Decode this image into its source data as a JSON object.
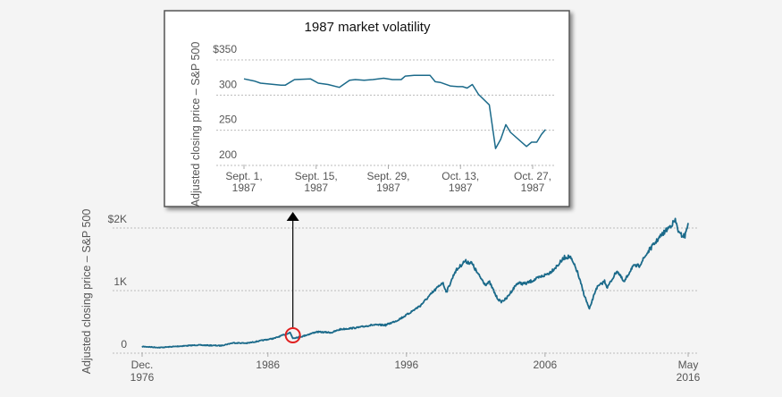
{
  "colors": {
    "series": "#1b6a8a",
    "highlight_circle": "#e02020",
    "arrow": "#000000",
    "background": "#f4f4f4",
    "inset_background": "#ffffff",
    "inset_border": "#555555"
  },
  "chart_data": [
    {
      "id": "main",
      "type": "line",
      "title": "",
      "xlabel": "",
      "ylabel": "Adjusted closing price – S&P 500",
      "xlim": [
        1976.92,
        2016.33
      ],
      "ylim": [
        0,
        2000
      ],
      "grid": true,
      "y_ticks": [
        {
          "value": 0,
          "label": "0"
        },
        {
          "value": 1000,
          "label": "1K"
        },
        {
          "value": 2000,
          "label": "$2K"
        }
      ],
      "x_ticks": [
        {
          "value": 1976.92,
          "label": [
            "Dec.",
            "1976"
          ]
        },
        {
          "value": 1986,
          "label": [
            "1986"
          ]
        },
        {
          "value": 1996,
          "label": [
            "1996"
          ]
        },
        {
          "value": 2006,
          "label": [
            "2006"
          ]
        },
        {
          "value": 2016.33,
          "label": [
            "May",
            "2016"
          ]
        }
      ],
      "series": [
        {
          "name": "S&P 500 adjusted close",
          "x": [
            1976.92,
            1978.2,
            1979.5,
            1980.9,
            1982.6,
            1983.5,
            1984.5,
            1985.5,
            1986.5,
            1987.6,
            1987.8,
            1988.5,
            1989.5,
            1990.6,
            1991.2,
            1992.5,
            1993.5,
            1994.5,
            1995.3,
            1996.0,
            1997.0,
            1997.8,
            1998.6,
            1998.9,
            1999.5,
            2000.2,
            2000.7,
            2001.2,
            2001.7,
            2002.0,
            2002.5,
            2002.8,
            2003.2,
            2004.0,
            2004.6,
            2005.5,
            2006.3,
            2006.9,
            2007.4,
            2007.8,
            2008.3,
            2008.8,
            2009.2,
            2009.7,
            2010.3,
            2010.5,
            2011.2,
            2011.7,
            2012.3,
            2012.8,
            2013.5,
            2014.3,
            2014.9,
            2015.4,
            2015.7,
            2016.1,
            2016.33
          ],
          "y": [
            107,
            90,
            110,
            130,
            120,
            165,
            160,
            200,
            240,
            330,
            240,
            270,
            340,
            330,
            380,
            410,
            450,
            450,
            520,
            610,
            760,
            950,
            1130,
            980,
            1300,
            1470,
            1440,
            1250,
            1100,
            1130,
            900,
            820,
            870,
            1120,
            1110,
            1200,
            1280,
            1400,
            1530,
            1540,
            1320,
            950,
            700,
            1040,
            1150,
            1050,
            1320,
            1130,
            1380,
            1400,
            1640,
            1860,
            2000,
            2120,
            1900,
            1870,
            2080
          ]
        }
      ],
      "annotations": [
        {
          "type": "circle",
          "x": 1987.8,
          "y": 280,
          "meaning": "October 1987 crash highlighted"
        },
        {
          "type": "arrow",
          "from_x": 1987.8,
          "to": "inset",
          "meaning": "points to 1987 detail inset"
        }
      ]
    },
    {
      "id": "inset",
      "type": "line",
      "title": "1987 market volatility",
      "xlabel": "",
      "ylabel": "Adjusted closing price – S&P 500",
      "xlim_days_from_sept1": [
        0,
        58
      ],
      "ylim": [
        200,
        350
      ],
      "grid": true,
      "y_ticks": [
        {
          "value": 200,
          "label": "200"
        },
        {
          "value": 250,
          "label": "250"
        },
        {
          "value": 300,
          "label": "300"
        },
        {
          "value": 350,
          "label": "$350"
        }
      ],
      "x_ticks": [
        {
          "value": 0,
          "label": [
            "Sept. 1,",
            "1987"
          ]
        },
        {
          "value": 14,
          "label": [
            "Sept. 15,",
            "1987"
          ]
        },
        {
          "value": 28,
          "label": [
            "Sept. 29,",
            "1987"
          ]
        },
        {
          "value": 42,
          "label": [
            "Oct. 13,",
            "1987"
          ]
        },
        {
          "value": 56,
          "label": [
            "Oct. 27,",
            "1987"
          ]
        }
      ],
      "series": [
        {
          "name": "S&P 500 adjusted close",
          "x": [
            0,
            2,
            3.2,
            7.2,
            8,
            9.8,
            12.9,
            14.4,
            16.3,
            18.5,
            20.5,
            21.6,
            23.3,
            25,
            27.1,
            28.8,
            30.5,
            31.3,
            33,
            35.1,
            36.1,
            37.1,
            38.1,
            40,
            41.5,
            42.4,
            43.3,
            44.3,
            45.5,
            47.6,
            48.8,
            49.8,
            50.8,
            51.7,
            54.8,
            55.8,
            56.8,
            57.7,
            58.5
          ],
          "y": [
            323,
            320,
            317,
            314,
            314,
            322,
            323,
            317,
            315,
            311,
            321,
            322,
            321,
            322,
            324,
            322,
            322,
            327,
            328,
            328,
            328,
            319,
            318,
            313,
            312,
            312,
            310,
            315,
            301,
            286,
            224,
            237,
            258,
            247,
            227,
            233,
            233,
            244,
            251
          ]
        }
      ]
    }
  ]
}
